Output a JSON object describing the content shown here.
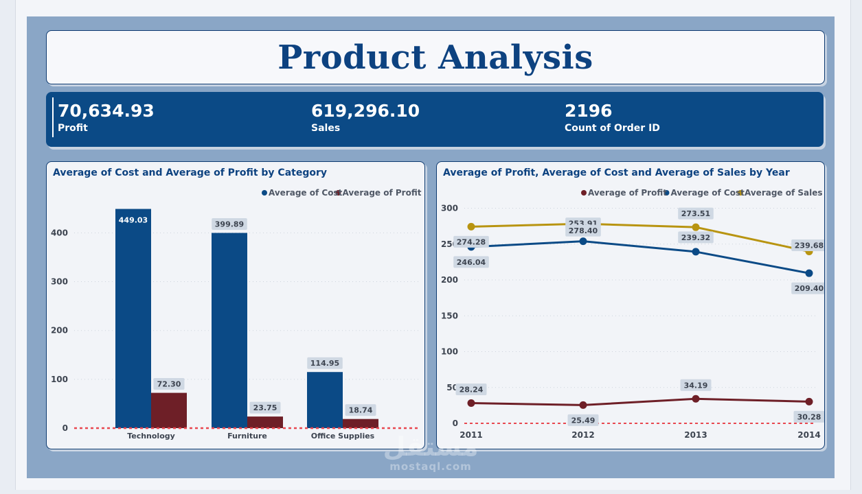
{
  "title": "Product Analysis",
  "kpis": [
    {
      "value": "70,634.93",
      "label": "Profit"
    },
    {
      "value": "619,296.10",
      "label": "Sales"
    },
    {
      "value": "2196",
      "label": "Count of Order ID"
    }
  ],
  "colors": {
    "cost": "#0b4a86",
    "profit": "#6e1f27",
    "sales": "#b89411",
    "baseline": "#e8474f"
  },
  "chart_data": [
    {
      "type": "bar",
      "title": "Average of Cost and Average of Profit by Category",
      "categories": [
        "Technology",
        "Furniture",
        "Office Supplies"
      ],
      "series": [
        {
          "name": "Average of Cost",
          "values": [
            449.03,
            399.89,
            114.95
          ],
          "labels": [
            "449.03",
            "399.89",
            "114.95"
          ]
        },
        {
          "name": "Average of Profit",
          "values": [
            72.3,
            23.75,
            18.74
          ],
          "labels": [
            "72.30",
            "23.75",
            "18.74"
          ]
        }
      ],
      "ylim": [
        0,
        450
      ],
      "yticks": [
        0,
        100,
        200,
        300,
        400
      ],
      "legend": "top-right",
      "grid": true
    },
    {
      "type": "line",
      "title": "Average of Profit, Average of Cost and Average of Sales by Year",
      "x": [
        "2011",
        "2012",
        "2013",
        "2014"
      ],
      "series": [
        {
          "name": "Average of Profit",
          "values": [
            28.24,
            25.49,
            34.19,
            30.28
          ],
          "labels": [
            "28.24",
            "25.49",
            "34.19",
            "30.28"
          ]
        },
        {
          "name": "Average of Cost",
          "values": [
            246.04,
            253.91,
            239.32,
            209.4
          ],
          "labels": [
            "246.04",
            "253.91",
            "239.32",
            "209.40"
          ]
        },
        {
          "name": "Average of Sales",
          "values": [
            274.28,
            278.4,
            273.51,
            239.68
          ],
          "labels": [
            "274.28",
            "278.40",
            "273.51",
            "239.68"
          ]
        }
      ],
      "ylim": [
        0,
        300
      ],
      "yticks": [
        0,
        50,
        100,
        150,
        200,
        250,
        300
      ],
      "legend": "top-right",
      "grid": true
    }
  ]
}
